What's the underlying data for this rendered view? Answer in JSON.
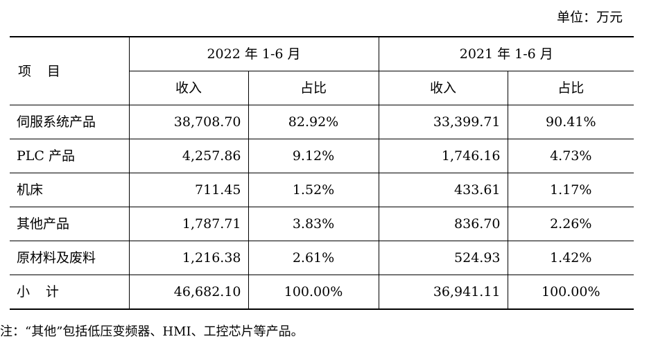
{
  "unit_label": "单位：万元",
  "header": {
    "item_a": "项",
    "item_b": "目",
    "period_2022": "2022 年 1-6 月",
    "period_2021": "2021 年 1-6 月",
    "revenue": "收入",
    "share": "占比"
  },
  "rows": [
    {
      "name": "伺服系统产品",
      "rev_2022": "38,708.70",
      "pct_2022": "82.92%",
      "rev_2021": "33,399.71",
      "pct_2021": "90.41%"
    },
    {
      "name": "PLC 产品",
      "rev_2022": "4,257.86",
      "pct_2022": "9.12%",
      "rev_2021": "1,746.16",
      "pct_2021": "4.73%"
    },
    {
      "name": "机床",
      "rev_2022": "711.45",
      "pct_2022": "1.52%",
      "rev_2021": "433.61",
      "pct_2021": "1.17%"
    },
    {
      "name": "其他产品",
      "rev_2022": "1,787.71",
      "pct_2022": "3.83%",
      "rev_2021": "836.70",
      "pct_2021": "2.26%"
    },
    {
      "name": "原材料及废料",
      "rev_2022": "1,216.38",
      "pct_2022": "2.61%",
      "rev_2021": "524.93",
      "pct_2021": "1.42%"
    }
  ],
  "total": {
    "name_a": "小",
    "name_b": "计",
    "rev_2022": "46,682.10",
    "pct_2022": "100.00%",
    "rev_2021": "36,941.11",
    "pct_2021": "100.00%"
  },
  "note": "注：“其他”包括低压变频器、HMI、工控芯片等产品。"
}
